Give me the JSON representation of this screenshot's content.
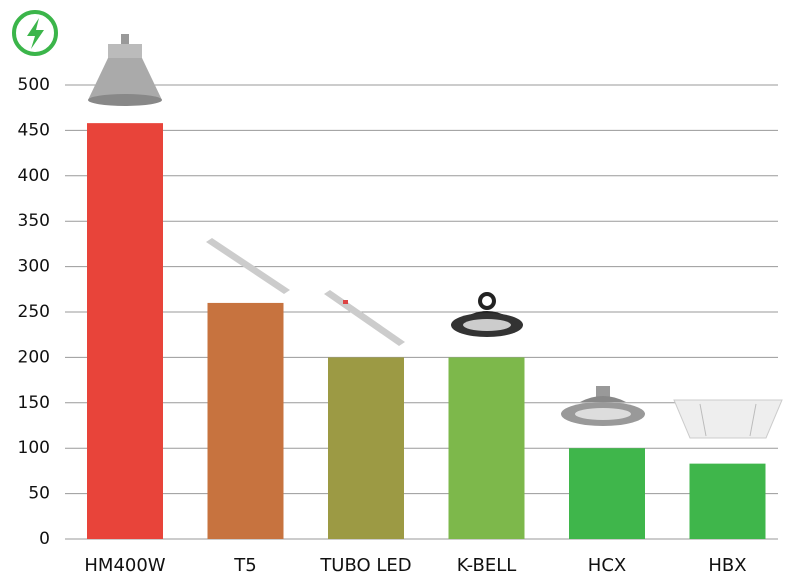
{
  "chart_data": {
    "type": "bar",
    "categories": [
      "HM400W",
      "T5",
      "TUBO LED",
      "K-BELL",
      "HCX",
      "HBX"
    ],
    "values": [
      458,
      260,
      200,
      200,
      100,
      83
    ],
    "colors": [
      "#e8443a",
      "#c7733f",
      "#9c9a44",
      "#7db84b",
      "#3fb64b",
      "#3fb64b"
    ],
    "ylim": [
      0,
      500
    ],
    "yticks": [
      0,
      50,
      100,
      150,
      200,
      250,
      300,
      350,
      400,
      450,
      500
    ],
    "grid": true
  }
}
